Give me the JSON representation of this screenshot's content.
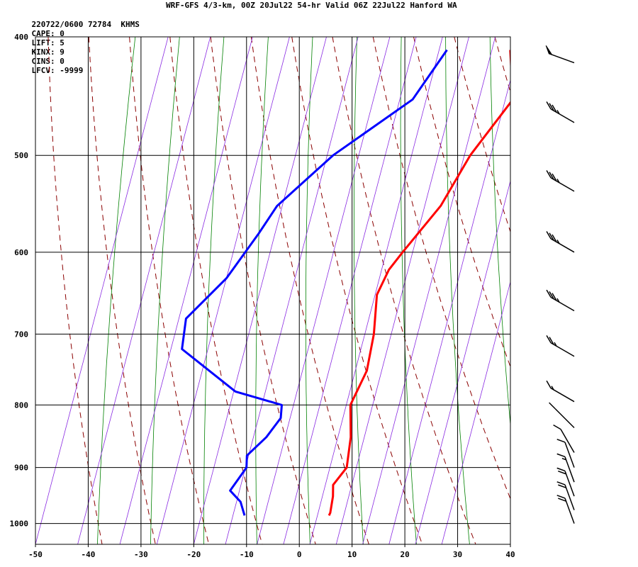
{
  "header": {
    "title": "WRF-GFS 4/3-km, 00Z 20Jul22 54-hr Valid 06Z 22Jul22 Hanford WA",
    "date_station": "220722/0600 72784  KHMS",
    "indices": [
      {
        "label": "CAPE:",
        "value": "0"
      },
      {
        "label": "LIFT:",
        "value": "5"
      },
      {
        "label": "KINX:",
        "value": "9"
      },
      {
        "label": "CINS:",
        "value": "0"
      },
      {
        "label": "LFCV:",
        "value": "-9999"
      }
    ]
  },
  "colors": {
    "grid": "#000000",
    "temperature": "#ff0000",
    "dewpoint": "#0000ff",
    "dry_adiabat": "#8b0000",
    "moist_adiabat": "#008000",
    "mixing_ratio": "#8a2be2",
    "wind_barb": "#000000"
  },
  "chart_data": {
    "type": "skew-t",
    "x_axis": {
      "label": "",
      "ticks": [
        -50,
        -40,
        -30,
        -20,
        -10,
        0,
        10,
        20,
        30,
        40
      ],
      "range": [
        -50,
        40
      ],
      "units": "C"
    },
    "y_axis": {
      "label": "",
      "ticks": [
        400,
        500,
        600,
        700,
        800,
        900,
        1000
      ],
      "range": [
        400,
        1040
      ],
      "scale": "log",
      "units": "hPa"
    },
    "series": [
      {
        "id": "temperature",
        "points": [
          {
            "p": 410,
            "t": -5
          },
          {
            "p": 450,
            "t": 0
          },
          {
            "p": 500,
            "t": -3
          },
          {
            "p": 550,
            "t": -4
          },
          {
            "p": 600,
            "t": -7
          },
          {
            "p": 620,
            "t": -8
          },
          {
            "p": 650,
            "t": -8
          },
          {
            "p": 700,
            "t": -5
          },
          {
            "p": 750,
            "t": -3
          },
          {
            "p": 800,
            "t": -3
          },
          {
            "p": 850,
            "t": 0
          },
          {
            "p": 900,
            "t": 2
          },
          {
            "p": 930,
            "t": 1
          },
          {
            "p": 950,
            "t": 2
          },
          {
            "p": 980,
            "t": 3
          },
          {
            "p": 985,
            "t": 3
          }
        ]
      },
      {
        "id": "dewpoint",
        "points": [
          {
            "p": 410,
            "t": -17
          },
          {
            "p": 450,
            "t": -19
          },
          {
            "p": 500,
            "t": -29
          },
          {
            "p": 550,
            "t": -35
          },
          {
            "p": 580,
            "t": -36
          },
          {
            "p": 630,
            "t": -38
          },
          {
            "p": 680,
            "t": -42
          },
          {
            "p": 720,
            "t": -40
          },
          {
            "p": 780,
            "t": -26
          },
          {
            "p": 800,
            "t": -16
          },
          {
            "p": 820,
            "t": -15
          },
          {
            "p": 850,
            "t": -16
          },
          {
            "p": 880,
            "t": -18
          },
          {
            "p": 900,
            "t": -17
          },
          {
            "p": 940,
            "t": -18
          },
          {
            "p": 960,
            "t": -15
          },
          {
            "p": 985,
            "t": -13
          }
        ]
      }
    ],
    "wind_barbs": [
      {
        "p": 420,
        "dir": 250,
        "kt": 50
      },
      {
        "p": 470,
        "dir": 240,
        "kt": 35
      },
      {
        "p": 535,
        "dir": 240,
        "kt": 35
      },
      {
        "p": 600,
        "dir": 240,
        "kt": 35
      },
      {
        "p": 670,
        "dir": 240,
        "kt": 35
      },
      {
        "p": 730,
        "dir": 240,
        "kt": 25
      },
      {
        "p": 795,
        "dir": 240,
        "kt": 15
      },
      {
        "p": 835,
        "dir": 225,
        "kt": 10
      },
      {
        "p": 875,
        "dir": 210,
        "kt": 10
      },
      {
        "p": 900,
        "dir": 200,
        "kt": 10
      },
      {
        "p": 925,
        "dir": 200,
        "kt": 15
      },
      {
        "p": 950,
        "dir": 200,
        "kt": 20
      },
      {
        "p": 975,
        "dir": 200,
        "kt": 20
      },
      {
        "p": 1000,
        "dir": 200,
        "kt": 20
      }
    ]
  }
}
